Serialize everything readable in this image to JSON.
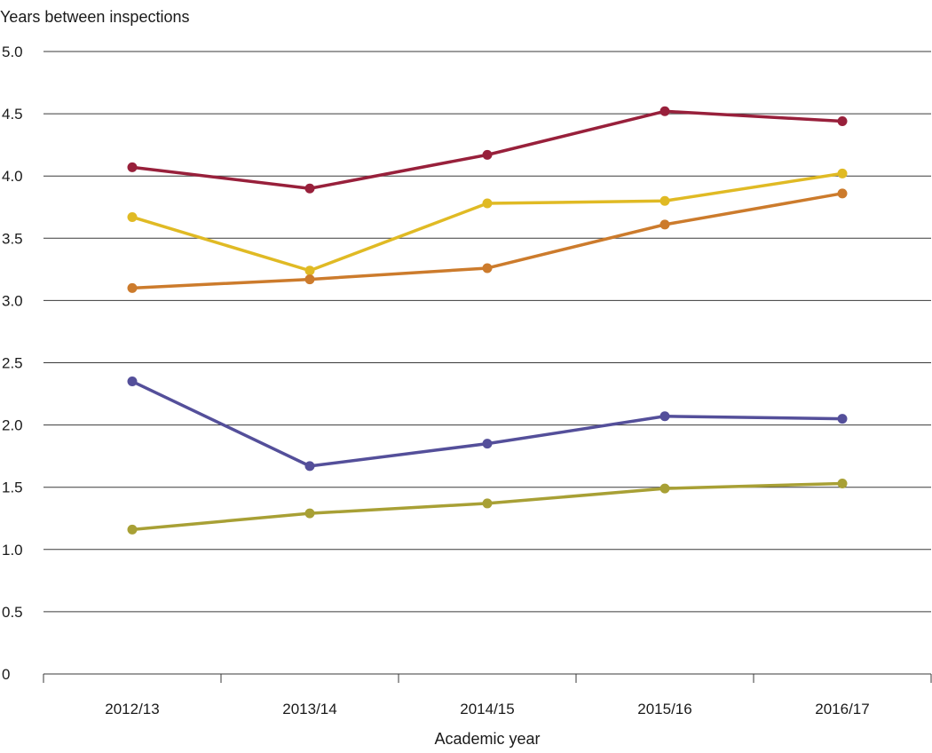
{
  "chart_data": {
    "type": "line",
    "title": "",
    "ylabel": "Years between inspections",
    "xlabel": "Academic year",
    "categories": [
      "2012/13",
      "2013/14",
      "2014/15",
      "2015/16",
      "2016/17"
    ],
    "ylim": [
      0,
      5
    ],
    "yticks": [
      "0",
      "0.5",
      "1.0",
      "1.5",
      "2.0",
      "2.5",
      "3.0",
      "3.5",
      "4.0",
      "4.5",
      "5.0"
    ],
    "grid": "horizontal",
    "series": [
      {
        "color": "#98203b",
        "values": [
          4.07,
          3.9,
          4.17,
          4.52,
          4.44
        ]
      },
      {
        "color": "#e0ba24",
        "values": [
          3.67,
          3.24,
          3.78,
          3.8,
          4.02
        ]
      },
      {
        "color": "#cc7b2c",
        "values": [
          3.1,
          3.17,
          3.26,
          3.61,
          3.86
        ]
      },
      {
        "color": "#544f9a",
        "values": [
          2.35,
          1.67,
          1.85,
          2.07,
          2.05
        ]
      },
      {
        "color": "#a8a035",
        "values": [
          1.16,
          1.29,
          1.37,
          1.49,
          1.53
        ]
      }
    ]
  }
}
